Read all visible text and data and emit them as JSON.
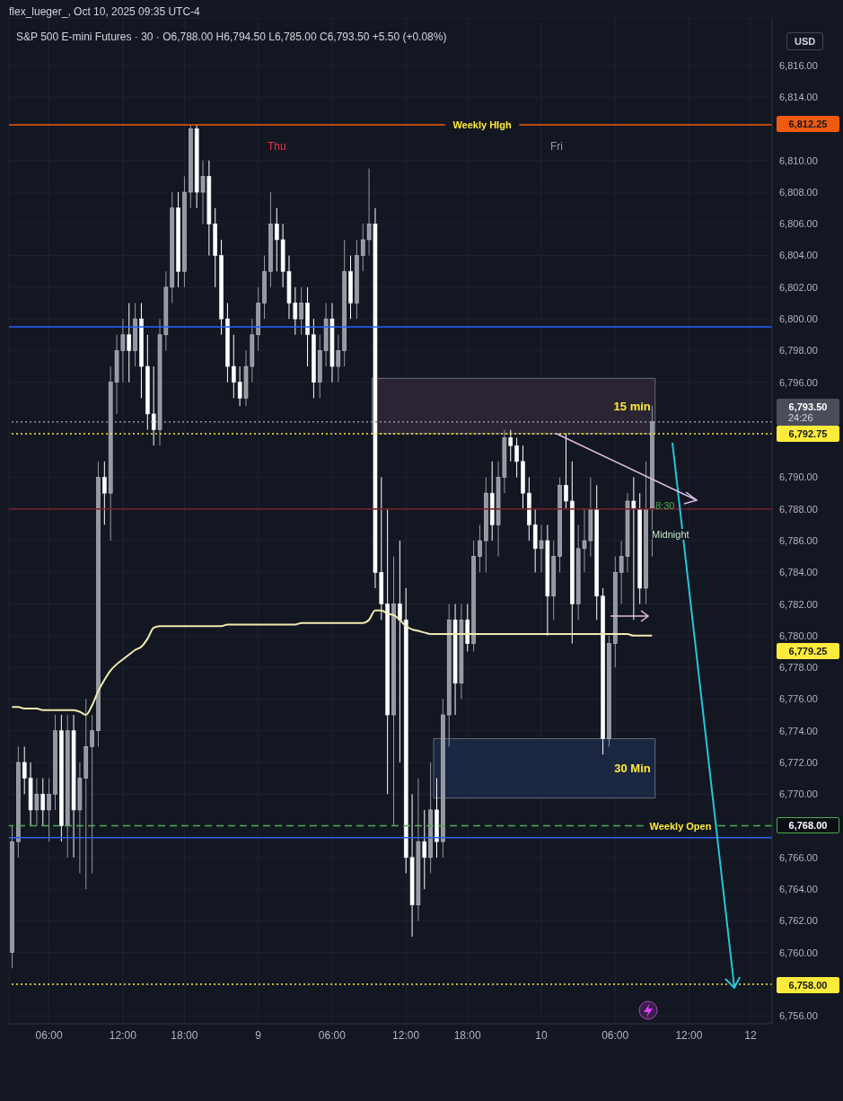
{
  "chart_data": {
    "type": "candlestick",
    "title": "S&P 500 E-mini Futures · 30 · O6,788.00 H6,794.50 L6,785.00 C6,793.50 +5.50 (+0.08%)",
    "categories": [
      null,
      null,
      null,
      null,
      null,
      null,
      "06:00",
      null,
      null,
      null,
      null,
      null,
      null,
      null,
      null,
      null,
      null,
      null,
      "12:00",
      null,
      null,
      null,
      null,
      null,
      null,
      null,
      null,
      null,
      "18:00",
      null,
      null,
      null,
      null,
      null,
      null,
      null,
      null,
      null,
      null,
      null,
      "9",
      null,
      null,
      null,
      null,
      null,
      null,
      null,
      null,
      null,
      null,
      null,
      "06:00",
      null,
      null,
      null,
      null,
      null,
      null,
      null,
      null,
      null,
      null,
      null,
      "12:00",
      null,
      null,
      null,
      null,
      null,
      null,
      null,
      null,
      null,
      "18:00",
      null,
      null,
      null,
      null,
      null,
      null,
      null,
      null,
      null,
      null,
      null,
      "10",
      null,
      null,
      null,
      null,
      null,
      null,
      null,
      null,
      null,
      null,
      null,
      "06:00",
      null,
      null,
      null,
      null,
      null,
      null,
      null,
      null,
      null,
      null,
      null,
      "12:00",
      null,
      null,
      null,
      null,
      null,
      null,
      null,
      null,
      null,
      "12",
      null,
      null,
      null
    ],
    "series": [
      {
        "type": "candlestick",
        "ohlc": [
          [
            6760,
            6768,
            6759,
            6767
          ],
          [
            6767,
            6773,
            6766,
            6772
          ],
          [
            6772,
            6773,
            6770,
            6771
          ],
          [
            6771,
            6772,
            6768,
            6769
          ],
          [
            6769,
            6771,
            6768,
            6770
          ],
          [
            6770,
            6771,
            6768,
            6769
          ],
          [
            6769,
            6771,
            6767,
            6770
          ],
          [
            6770,
            6775,
            6769,
            6774
          ],
          [
            6774,
            6775,
            6767,
            6768
          ],
          [
            6768,
            6775,
            6766,
            6774
          ],
          [
            6774,
            6775,
            6766,
            6769
          ],
          [
            6769,
            6772,
            6765,
            6771
          ],
          [
            6771,
            6776,
            6764,
            6773
          ],
          [
            6773,
            6775,
            6765,
            6774
          ],
          [
            6774,
            6791,
            6773,
            6790
          ],
          [
            6790,
            6791,
            6787,
            6789
          ],
          [
            6789,
            6797,
            6786,
            6796
          ],
          [
            6796,
            6799,
            6794,
            6798
          ],
          [
            6798,
            6800,
            6796,
            6799
          ],
          [
            6799,
            6801,
            6796,
            6798
          ],
          [
            6798,
            6801,
            6797,
            6800
          ],
          [
            6800,
            6801,
            6795,
            6797
          ],
          [
            6797,
            6799,
            6793,
            6794
          ],
          [
            6794,
            6797,
            6792,
            6793
          ],
          [
            6793,
            6800,
            6792,
            6799
          ],
          [
            6799,
            6803,
            6798,
            6802
          ],
          [
            6802,
            6808,
            6801,
            6807
          ],
          [
            6807,
            6808,
            6802,
            6803
          ],
          [
            6803,
            6809,
            6802,
            6808
          ],
          [
            6808,
            6812.25,
            6807,
            6812
          ],
          [
            6812,
            6812.25,
            6807,
            6808
          ],
          [
            6808,
            6810,
            6806,
            6809
          ],
          [
            6809,
            6810,
            6804,
            6806
          ],
          [
            6806,
            6807,
            6802,
            6804
          ],
          [
            6804,
            6805,
            6799,
            6800
          ],
          [
            6800,
            6801,
            6796,
            6797
          ],
          [
            6797,
            6799,
            6795,
            6796
          ],
          [
            6796,
            6797,
            6794.5,
            6795
          ],
          [
            6795,
            6798,
            6794.5,
            6797
          ],
          [
            6797,
            6800,
            6796,
            6799
          ],
          [
            6799,
            6802,
            6798,
            6801
          ],
          [
            6801,
            6804,
            6800,
            6803
          ],
          [
            6803,
            6808,
            6802,
            6806
          ],
          [
            6806,
            6807,
            6803,
            6805
          ],
          [
            6805,
            6806,
            6802,
            6803
          ],
          [
            6803,
            6804,
            6800,
            6801
          ],
          [
            6801,
            6802,
            6799,
            6800
          ],
          [
            6800,
            6802,
            6799,
            6801
          ],
          [
            6801,
            6802,
            6797,
            6799
          ],
          [
            6799,
            6800,
            6795,
            6796
          ],
          [
            6796,
            6799,
            6795,
            6798
          ],
          [
            6798,
            6801,
            6797,
            6800
          ],
          [
            6800,
            6801,
            6796,
            6797
          ],
          [
            6797,
            6799,
            6796,
            6798
          ],
          [
            6798,
            6805,
            6797,
            6803
          ],
          [
            6803,
            6804,
            6800,
            6801
          ],
          [
            6801,
            6805,
            6800,
            6804
          ],
          [
            6804,
            6806,
            6803,
            6805
          ],
          [
            6805,
            6809.5,
            6804,
            6806
          ],
          [
            6806,
            6807,
            6783,
            6784
          ],
          [
            6784,
            6790,
            6781,
            6782
          ],
          [
            6782,
            6788,
            6770,
            6775
          ],
          [
            6775,
            6785,
            6768,
            6782
          ],
          [
            6782,
            6786,
            6772,
            6781
          ],
          [
            6781,
            6783,
            6765,
            6766
          ],
          [
            6766,
            6770,
            6761,
            6763
          ],
          [
            6763,
            6771,
            6762,
            6767
          ],
          [
            6767,
            6769,
            6764,
            6766
          ],
          [
            6766,
            6772,
            6765,
            6769
          ],
          [
            6769,
            6771,
            6766,
            6767
          ],
          [
            6767,
            6776,
            6766,
            6775
          ],
          [
            6775,
            6782,
            6773,
            6781
          ],
          [
            6781,
            6782,
            6775,
            6777
          ],
          [
            6777,
            6782,
            6776,
            6781
          ],
          [
            6781,
            6782,
            6779,
            6779.5
          ],
          [
            6779.5,
            6786,
            6779,
            6785
          ],
          [
            6785,
            6787,
            6784,
            6786
          ],
          [
            6786,
            6790,
            6784,
            6789
          ],
          [
            6789,
            6791,
            6786,
            6787
          ],
          [
            6787,
            6791,
            6785,
            6790
          ],
          [
            6790,
            6793,
            6789,
            6792.5
          ],
          [
            6792.5,
            6793,
            6791,
            6792
          ],
          [
            6792,
            6792.5,
            6790,
            6791
          ],
          [
            6791,
            6792,
            6788,
            6789
          ],
          [
            6789,
            6790,
            6786,
            6787
          ],
          [
            6787,
            6788,
            6784,
            6785.5
          ],
          [
            6785.5,
            6787,
            6784,
            6786
          ],
          [
            6786,
            6787,
            6780,
            6782.5
          ],
          [
            6782.5,
            6786,
            6781,
            6785
          ],
          [
            6785,
            6790,
            6784,
            6789.5
          ],
          [
            6789.5,
            6792.75,
            6788,
            6788.5
          ],
          [
            6788.5,
            6791,
            6779.5,
            6782
          ],
          [
            6782,
            6787,
            6781,
            6785.5
          ],
          [
            6785.5,
            6788,
            6784,
            6786
          ],
          [
            6786,
            6790,
            6785,
            6788
          ],
          [
            6788,
            6789.5,
            6781,
            6782.5
          ],
          [
            6782.5,
            6783,
            6772.5,
            6773.5
          ],
          [
            6773.5,
            6780,
            6773,
            6779.5
          ],
          [
            6779.5,
            6785,
            6778,
            6784
          ],
          [
            6784,
            6786,
            6782,
            6785
          ],
          [
            6785,
            6789,
            6784,
            6788.5
          ],
          [
            6788.5,
            6790,
            6781,
            6788
          ],
          [
            6788,
            6789,
            6782,
            6783
          ],
          [
            6783,
            6791,
            6782,
            6788
          ],
          [
            6788,
            6794.5,
            6785,
            6793.5
          ],
          null,
          null,
          null,
          null,
          null,
          null,
          null,
          null,
          null,
          null,
          null,
          null,
          null,
          null,
          null,
          null,
          null,
          null,
          null
        ],
        "colors": [
          "#9598a1",
          "#9598a1",
          "#ffffff",
          "#ffffff",
          "#9598a1",
          "#ffffff",
          "#9598a1",
          "#9598a1",
          "#ffffff",
          "#9598a1",
          "#ffffff",
          "#9598a1",
          "#9598a1",
          "#9598a1",
          "#9598a1",
          "#ffffff",
          "#9598a1",
          "#9598a1",
          "#9598a1",
          "#ffffff",
          "#9598a1",
          "#ffffff",
          "#ffffff",
          "#ffffff",
          "#9598a1",
          "#9598a1",
          "#9598a1",
          "#ffffff",
          "#9598a1",
          "#9598a1",
          "#ffffff",
          "#9598a1",
          "#ffffff",
          "#ffffff",
          "#ffffff",
          "#ffffff",
          "#ffffff",
          "#ffffff",
          "#9598a1",
          "#9598a1",
          "#9598a1",
          "#9598a1",
          "#9598a1",
          "#ffffff",
          "#ffffff",
          "#ffffff",
          "#ffffff",
          "#9598a1",
          "#ffffff",
          "#ffffff",
          "#9598a1",
          "#9598a1",
          "#ffffff",
          "#9598a1",
          "#9598a1",
          "#ffffff",
          "#9598a1",
          "#9598a1",
          "#9598a1",
          "#ffffff",
          "#ffffff",
          "#ffffff",
          "#9598a1",
          "#ffffff",
          "#ffffff",
          "#ffffff",
          "#9598a1",
          "#ffffff",
          "#9598a1",
          "#ffffff",
          "#9598a1",
          "#9598a1",
          "#ffffff",
          "#9598a1",
          "#ffffff",
          "#9598a1",
          "#9598a1",
          "#9598a1",
          "#ffffff",
          "#9598a1",
          "#9598a1",
          "#ffffff",
          "#ffffff",
          "#ffffff",
          "#ffffff",
          "#ffffff",
          "#9598a1",
          "#ffffff",
          "#9598a1",
          "#9598a1",
          "#ffffff",
          "#ffffff",
          "#9598a1",
          "#9598a1",
          "#9598a1",
          "#ffffff",
          "#ffffff",
          "#9598a1",
          "#9598a1",
          "#9598a1",
          "#9598a1",
          "#ffffff",
          "#ffffff",
          "#9598a1",
          "#9598a1",
          null,
          null,
          null,
          null,
          null,
          null,
          null,
          null,
          null,
          null,
          null,
          null,
          null,
          null,
          null,
          null,
          null,
          null,
          null
        ]
      },
      {
        "type": "line",
        "color": "#f3eab0",
        "values": [
          6775.5,
          6775.5,
          6775.4,
          6775.4,
          6775.4,
          6775.3,
          6775.3,
          6775.3,
          6775.3,
          6775.3,
          6775.3,
          6775.2,
          6775.0,
          6775.6,
          6776.5,
          6777.2,
          6777.8,
          6778.2,
          6778.5,
          6778.8,
          6779.1,
          6779.3,
          6779.8,
          6780.5,
          6780.6,
          6780.6,
          6780.6,
          6780.6,
          6780.6,
          6780.6,
          6780.6,
          6780.6,
          6780.6,
          6780.6,
          6780.6,
          6780.7,
          6780.7,
          6780.7,
          6780.7,
          6780.7,
          6780.7,
          6780.7,
          6780.7,
          6780.7,
          6780.7,
          6780.7,
          6780.7,
          6780.8,
          6780.8,
          6780.8,
          6780.8,
          6780.8,
          6780.8,
          6780.8,
          6780.8,
          6780.8,
          6780.8,
          6780.8,
          6781.0,
          6781.6,
          6781.6,
          6781.4,
          6781.3,
          6781.0,
          6780.6,
          6780.4,
          6780.3,
          6780.2,
          6780.1,
          6780.1,
          6780.1,
          6780.1,
          6780.1,
          6780.1,
          6780.1,
          6780.1,
          6780.1,
          6780.1,
          6780.1,
          6780.1,
          6780.1,
          6780.1,
          6780.1,
          6780.1,
          6780.1,
          6780.1,
          6780.1,
          6780.1,
          6780.1,
          6780.1,
          6780.1,
          6780.1,
          6780.1,
          6780.1,
          6780.1,
          6780.1,
          6780.1,
          6780.1,
          6780.1,
          6780.1,
          6780.1,
          6780.0,
          6780.0,
          6780.0,
          6780.0,
          null,
          null,
          null,
          null,
          null,
          null,
          null,
          null,
          null,
          null,
          null,
          null,
          null,
          null,
          null,
          null,
          null,
          null,
          null
        ]
      }
    ],
    "ylim": [
      6755.5,
      6819
    ],
    "yticks": [
      {
        "value": 6756,
        "label": "6,756.00"
      },
      {
        "value": 6760,
        "label": "6,760.00"
      },
      {
        "value": 6762,
        "label": "6,762.00"
      },
      {
        "value": 6764,
        "label": "6,764.00"
      },
      {
        "value": 6766,
        "label": "6,766.00"
      },
      {
        "value": 6770,
        "label": "6,770.00"
      },
      {
        "value": 6772,
        "label": "6,772.00"
      },
      {
        "value": 6774,
        "label": "6,774.00"
      },
      {
        "value": 6776,
        "label": "6,776.00"
      },
      {
        "value": 6778,
        "label": "6,778.00"
      },
      {
        "value": 6780,
        "label": "6,780.00"
      },
      {
        "value": 6782,
        "label": "6,782.00"
      },
      {
        "value": 6784,
        "label": "6,784.00"
      },
      {
        "value": 6786,
        "label": "6,786.00"
      },
      {
        "value": 6788,
        "label": "6,788.00"
      },
      {
        "value": 6790,
        "label": "6,790.00"
      },
      {
        "value": 6796,
        "label": "6,796.00"
      },
      {
        "value": 6798,
        "label": "6,798.00"
      },
      {
        "value": 6800,
        "label": "6,800.00"
      },
      {
        "value": 6802,
        "label": "6,802.00"
      },
      {
        "value": 6804,
        "label": "6,804.00"
      },
      {
        "value": 6806,
        "label": "6,806.00"
      },
      {
        "value": 6808,
        "label": "6,808.00"
      },
      {
        "value": 6810,
        "label": "6,810.00"
      },
      {
        "value": 6814,
        "label": "6,814.00"
      },
      {
        "value": 6816,
        "label": "6,816.00"
      }
    ],
    "grid": true,
    "ref_lines": [
      {
        "axis": "y",
        "value": 6812.25,
        "label": "Weekly HIgh",
        "color": "#f05a0f"
      },
      {
        "axis": "y",
        "value": 6799.5,
        "color": "#2962ff"
      },
      {
        "axis": "y",
        "value": 6793.5,
        "color": "#9598a1",
        "line_style": "dotted"
      },
      {
        "axis": "y",
        "value": 6792.75,
        "color": "#ffeb3b",
        "line_style": "dotted"
      },
      {
        "axis": "y",
        "value": 6788,
        "color": "#7a1e28"
      },
      {
        "axis": "y",
        "value": 6768,
        "label": "Weekly Open",
        "color": "#4caf50",
        "line_style": "dashed"
      },
      {
        "axis": "y",
        "value": 6767.25,
        "color": "#2962ff"
      },
      {
        "axis": "y",
        "value": 6758,
        "color": "#ffeb3b",
        "line_style": "dotted"
      }
    ],
    "bands": [
      {
        "axis": "y",
        "from": 6792.75,
        "to": 6796.25,
        "label": "15 min",
        "color": "#2a2433"
      },
      {
        "axis": "y",
        "from": 6769.75,
        "to": 6773.5,
        "label": "30 Min",
        "color": "#1b2740"
      }
    ],
    "annotations": [
      "flex_lueger_, Oct 10, 2025 09:35 UTC-4",
      "USD",
      "Thu",
      "Fri",
      "24:26",
      "8:30",
      "Midnight",
      "6,812.25",
      "6,793.50",
      "6,792.75",
      "6,779.25",
      "6,768.00",
      "6,758.00"
    ]
  }
}
